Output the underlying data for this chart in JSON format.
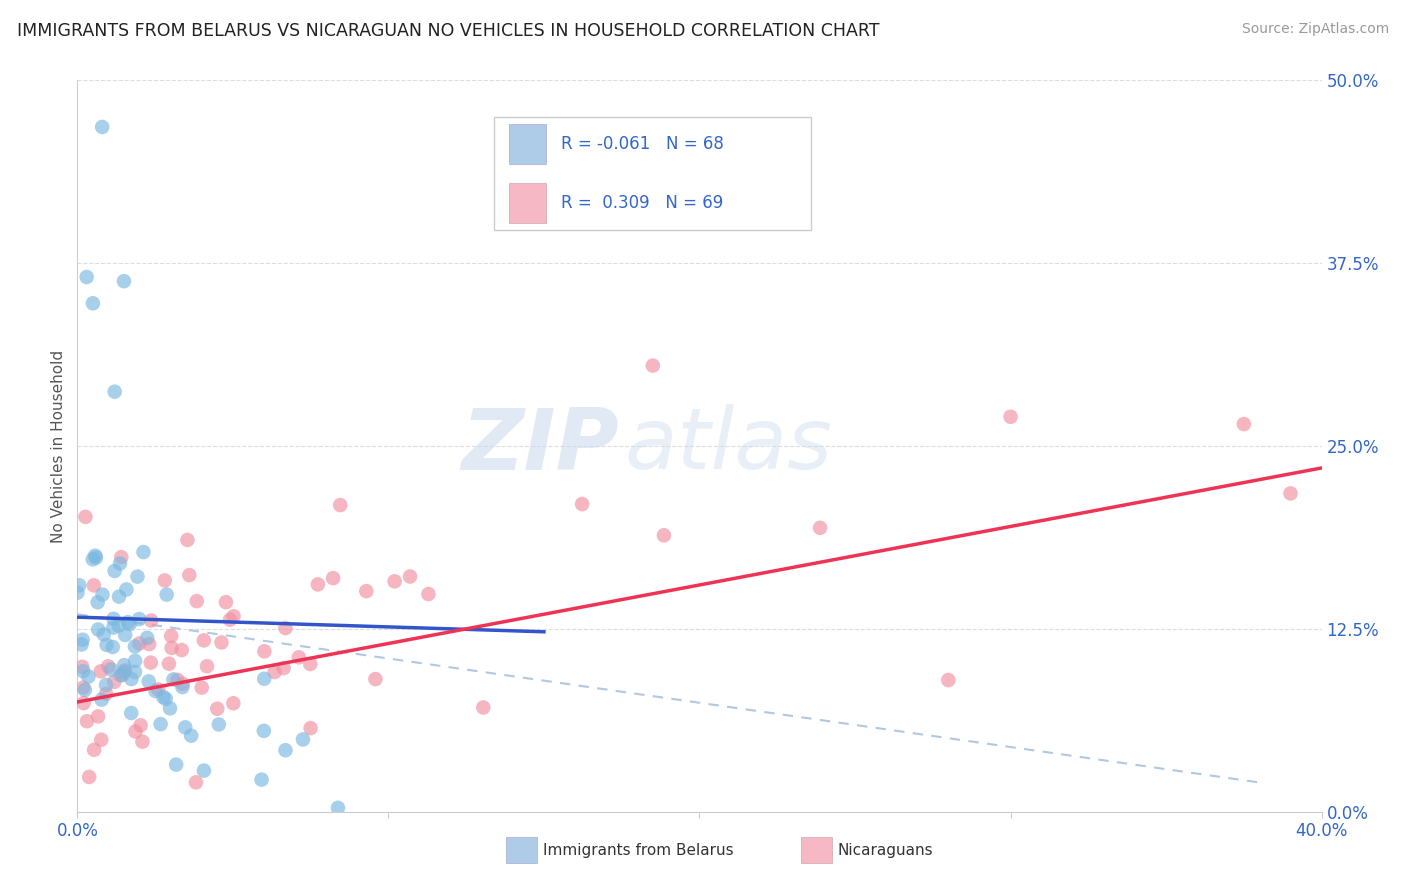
{
  "title": "IMMIGRANTS FROM BELARUS VS NICARAGUAN NO VEHICLES IN HOUSEHOLD CORRELATION CHART",
  "source": "Source: ZipAtlas.com",
  "ylabel_label": "No Vehicles in Household",
  "legend_entries": [
    {
      "color": "#aecce8",
      "R": "-0.061",
      "N": "68"
    },
    {
      "color": "#f5b8c4",
      "R": "0.309",
      "N": "69"
    }
  ],
  "legend_labels": [
    "Immigrants from Belarus",
    "Nicaraguans"
  ],
  "blue_color": "#7ab8e0",
  "pink_color": "#f090a0",
  "blue_line_color": "#3355cc",
  "pink_line_color": "#ee3355",
  "dashed_line_color": "#b0c8e0",
  "watermark_zip": "ZIP",
  "watermark_atlas": "atlas",
  "xlim": [
    0.0,
    0.4
  ],
  "ylim": [
    0.0,
    0.5
  ],
  "yticks_right": [
    0.0,
    0.125,
    0.25,
    0.375,
    0.5
  ],
  "ytick_labels_right": [
    "0.0%",
    "12.5%",
    "25.0%",
    "37.5%",
    "50.0%"
  ],
  "background_color": "#ffffff",
  "grid_color": "#dddddd"
}
